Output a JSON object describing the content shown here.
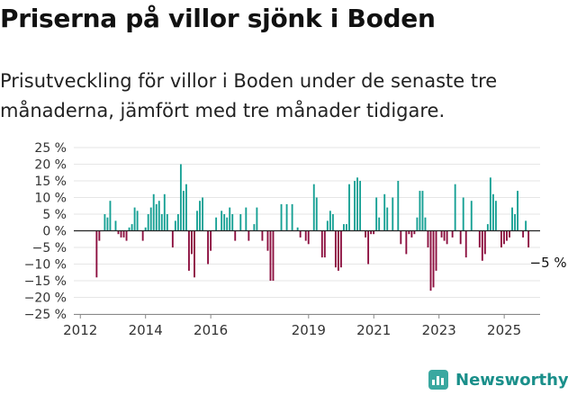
{
  "title": "Priserna på villor sjönk i Boden",
  "subtitle": "Prisutveckling för villor i Boden under de senaste tre månaderna, jämfört med tre månader tidigare.",
  "brand": "Newsworthy",
  "chart_data": {
    "type": "bar",
    "title": "Priserna på villor sjönk i Boden",
    "xlabel": "",
    "ylabel": "",
    "ylim": [
      -25,
      25
    ],
    "y_ticks": [
      25,
      20,
      15,
      10,
      5,
      0,
      -5,
      -10,
      -15,
      -20,
      -25
    ],
    "y_tick_labels": [
      "25 %",
      "20 %",
      "15 %",
      "10 %",
      "5 %",
      "0 %",
      "−5 %",
      "−10 %",
      "−15 %",
      "−20 %",
      "−25 %"
    ],
    "x_ticks": [
      2012,
      2014,
      2016,
      2019,
      2021,
      2023,
      2025
    ],
    "x_tick_labels": [
      "2012",
      "2014",
      "2016",
      "2019",
      "2021",
      "2023",
      "2025"
    ],
    "positive_color": "#16a094",
    "negative_color": "#8c0f3f",
    "last_value_label": "−5 %",
    "series": [
      {
        "name": "Prisutveckling",
        "start": 2012.5,
        "step_years": 0.0833,
        "values": [
          -14,
          -3,
          0,
          5,
          4,
          9,
          0,
          3,
          -1,
          -2,
          -2,
          -3,
          1,
          2,
          7,
          6,
          0,
          -3,
          1,
          5,
          7,
          11,
          8,
          9,
          5,
          11,
          5,
          0,
          -5,
          3,
          5,
          20,
          12,
          14,
          -12,
          -7,
          -14,
          6,
          9,
          10,
          0,
          -10,
          -6,
          0,
          4,
          0,
          6,
          5,
          4,
          7,
          5,
          -3,
          0,
          5,
          0,
          7,
          -3,
          0,
          2,
          7,
          0,
          -3,
          0,
          -6,
          -15,
          -15,
          0,
          0,
          8,
          0,
          8,
          0,
          8,
          0,
          1,
          -2,
          0,
          -3,
          -4,
          0,
          14,
          10,
          0,
          -8,
          -8,
          3,
          6,
          5,
          -11,
          -12,
          -11,
          2,
          2,
          14,
          0,
          15,
          16,
          15,
          0,
          -2,
          -10,
          -1,
          -1,
          10,
          4,
          0,
          11,
          7,
          0,
          10,
          0,
          15,
          -4,
          0,
          -7,
          -1,
          -2,
          -1,
          4,
          12,
          12,
          4,
          -5,
          -18,
          -17,
          -12,
          0,
          -2,
          -3,
          -4,
          0,
          -2,
          14,
          0,
          -4,
          10,
          -8,
          0,
          9,
          0,
          0,
          -5,
          -9,
          -7,
          2,
          16,
          11,
          9,
          0,
          -5,
          -4,
          -3,
          -2,
          7,
          5,
          12,
          0,
          -2,
          3,
          -5
        ]
      }
    ]
  }
}
